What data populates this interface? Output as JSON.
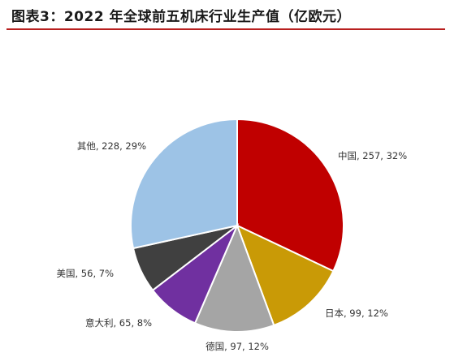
{
  "figure": {
    "title": "图表3：2022 年全球前五机床行业生产值（亿欧元）",
    "rule_color": "#b8201f"
  },
  "chart_data": {
    "type": "pie",
    "title": "",
    "slices": [
      {
        "label": "中国",
        "value": 257,
        "percent": "32%",
        "color": "#c00000",
        "text": "中国, 257, 32%"
      },
      {
        "label": "日本",
        "value": 99,
        "percent": "12%",
        "color": "#c99a06",
        "text": "日本, 99, 12%"
      },
      {
        "label": "德国",
        "value": 97,
        "percent": "12%",
        "color": "#a5a5a5",
        "text": "德国, 97, 12%"
      },
      {
        "label": "意大利",
        "value": 65,
        "percent": "8%",
        "color": "#7030a0",
        "text": "意大利, 65, 8%"
      },
      {
        "label": "美国",
        "value": 56,
        "percent": "7%",
        "color": "#404040",
        "text": "美国, 56, 7%"
      },
      {
        "label": "其他",
        "value": 228,
        "percent": "29%",
        "color": "#9dc3e6",
        "text": "其他, 228, 29%"
      }
    ],
    "start_angle": "12 o'clock",
    "direction": "clockwise",
    "legend": "none",
    "data_labels": "outside"
  }
}
